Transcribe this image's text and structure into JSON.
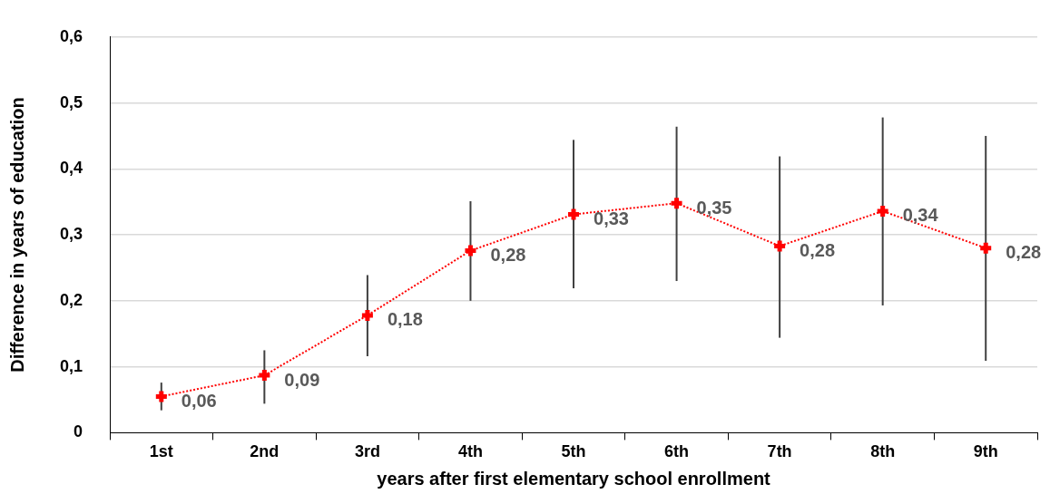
{
  "chart_data": {
    "type": "line",
    "xlabel": "years after first elementary school enrollment",
    "ylabel": "Difference in years of education",
    "categories": [
      "1st",
      "2nd",
      "3rd",
      "4th",
      "5th",
      "6th",
      "7th",
      "8th",
      "9th"
    ],
    "series": [
      {
        "color": "#ff0000",
        "values": [
          0.055,
          0.087,
          0.178,
          0.276,
          0.331,
          0.348,
          0.283,
          0.336,
          0.28
        ],
        "errors": [
          [
            0.034,
            0.076
          ],
          [
            0.044,
            0.125
          ],
          [
            0.116,
            0.239
          ],
          [
            0.2,
            0.351
          ],
          [
            0.219,
            0.444
          ],
          [
            0.23,
            0.464
          ],
          [
            0.144,
            0.419
          ],
          [
            0.193,
            0.478
          ],
          [
            0.109,
            0.45
          ]
        ],
        "value_labels": [
          "0,06",
          "0,09",
          "0,18",
          "0,28",
          "0,33",
          "0,35",
          "0,28",
          "0,34",
          "0,28"
        ]
      }
    ],
    "ylim": [
      0,
      0.6
    ],
    "yticks": [
      {
        "value": 0,
        "label": "0"
      },
      {
        "value": 0.1,
        "label": "0,1"
      },
      {
        "value": 0.2,
        "label": "0,2"
      },
      {
        "value": 0.3,
        "label": "0,3"
      },
      {
        "value": 0.4,
        "label": "0,4"
      },
      {
        "value": 0.5,
        "label": "0,5"
      },
      {
        "value": 0.6,
        "label": "0,6"
      }
    ],
    "grid": "y",
    "legend": false,
    "marker": "cross",
    "line_style": "dotted"
  }
}
